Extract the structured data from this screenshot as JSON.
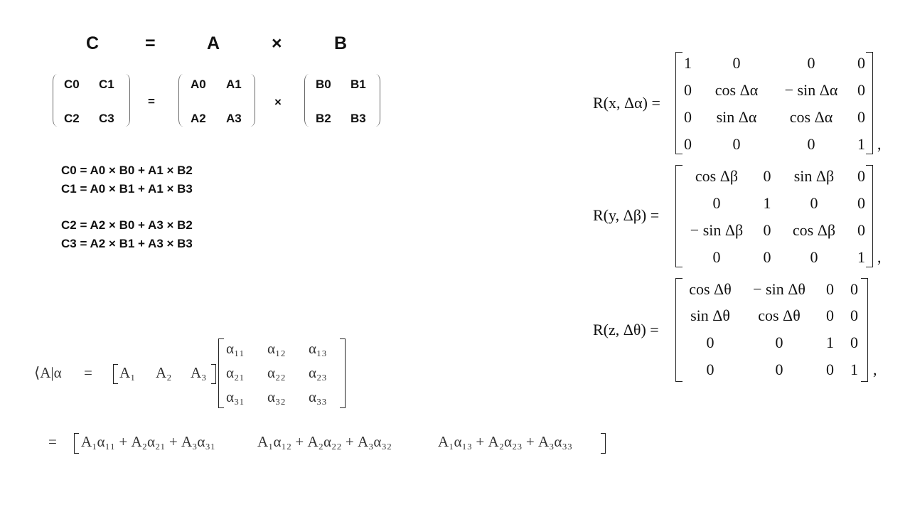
{
  "product_eq": {
    "c": "C",
    "eq": "=",
    "a": "A",
    "times": "×",
    "b": "B"
  },
  "matrix_c": [
    "C0",
    "C1",
    "C2",
    "C3"
  ],
  "matrix_a": [
    "A0",
    "A1",
    "A2",
    "A3"
  ],
  "matrix_b": [
    "B0",
    "B1",
    "B2",
    "B3"
  ],
  "eq_sign": "=",
  "times_sign": "×",
  "equations": [
    "C0 = A0 × B0 +  A1 × B2",
    "C1 = A0 × B1 +  A1 × B3",
    "C2 = A2 × B0 +  A3 × B2",
    "C3 = A2 × B1 +  A3 × B3"
  ],
  "bra": {
    "lhs": "⟨A|α",
    "eq": "=",
    "row": [
      "A₁",
      "A₂",
      "A₃"
    ],
    "matrix": [
      "α₁₁",
      "α₁₂",
      "α₁₃",
      "α₂₁",
      "α₂₂",
      "α₂₃",
      "α₃₁",
      "α₃₂",
      "α₃₃"
    ],
    "result_eq": "=",
    "result": [
      "A₁α₁₁ + A₂α₂₁ + A₃α₃₁",
      "A₁α₁₂ + A₂α₂₂ + A₃α₃₂",
      "A₁α₁₃ + A₂α₂₃ + A₃α₃₃"
    ]
  },
  "rotations": [
    {
      "label": "R(x, Δα) =",
      "cells": [
        "1",
        "0",
        "0",
        "0",
        "0",
        "cos Δα",
        "− sin Δα",
        "0",
        "0",
        "sin Δα",
        "cos Δα",
        "0",
        "0",
        "0",
        "0",
        "1"
      ],
      "comma": ","
    },
    {
      "label": "R(y, Δβ) =",
      "cells": [
        "cos Δβ",
        "0",
        "sin Δβ",
        "0",
        "0",
        "1",
        "0",
        "0",
        "− sin Δβ",
        "0",
        "cos Δβ",
        "0",
        "0",
        "0",
        "0",
        "1"
      ],
      "comma": ","
    },
    {
      "label": "R(z, Δθ) =",
      "cells": [
        "cos Δθ",
        "− sin Δθ",
        "0",
        "0",
        "sin Δθ",
        "cos Δθ",
        "0",
        "0",
        "0",
        "0",
        "1",
        "0",
        "0",
        "0",
        "0",
        "1"
      ],
      "comma": ","
    }
  ]
}
